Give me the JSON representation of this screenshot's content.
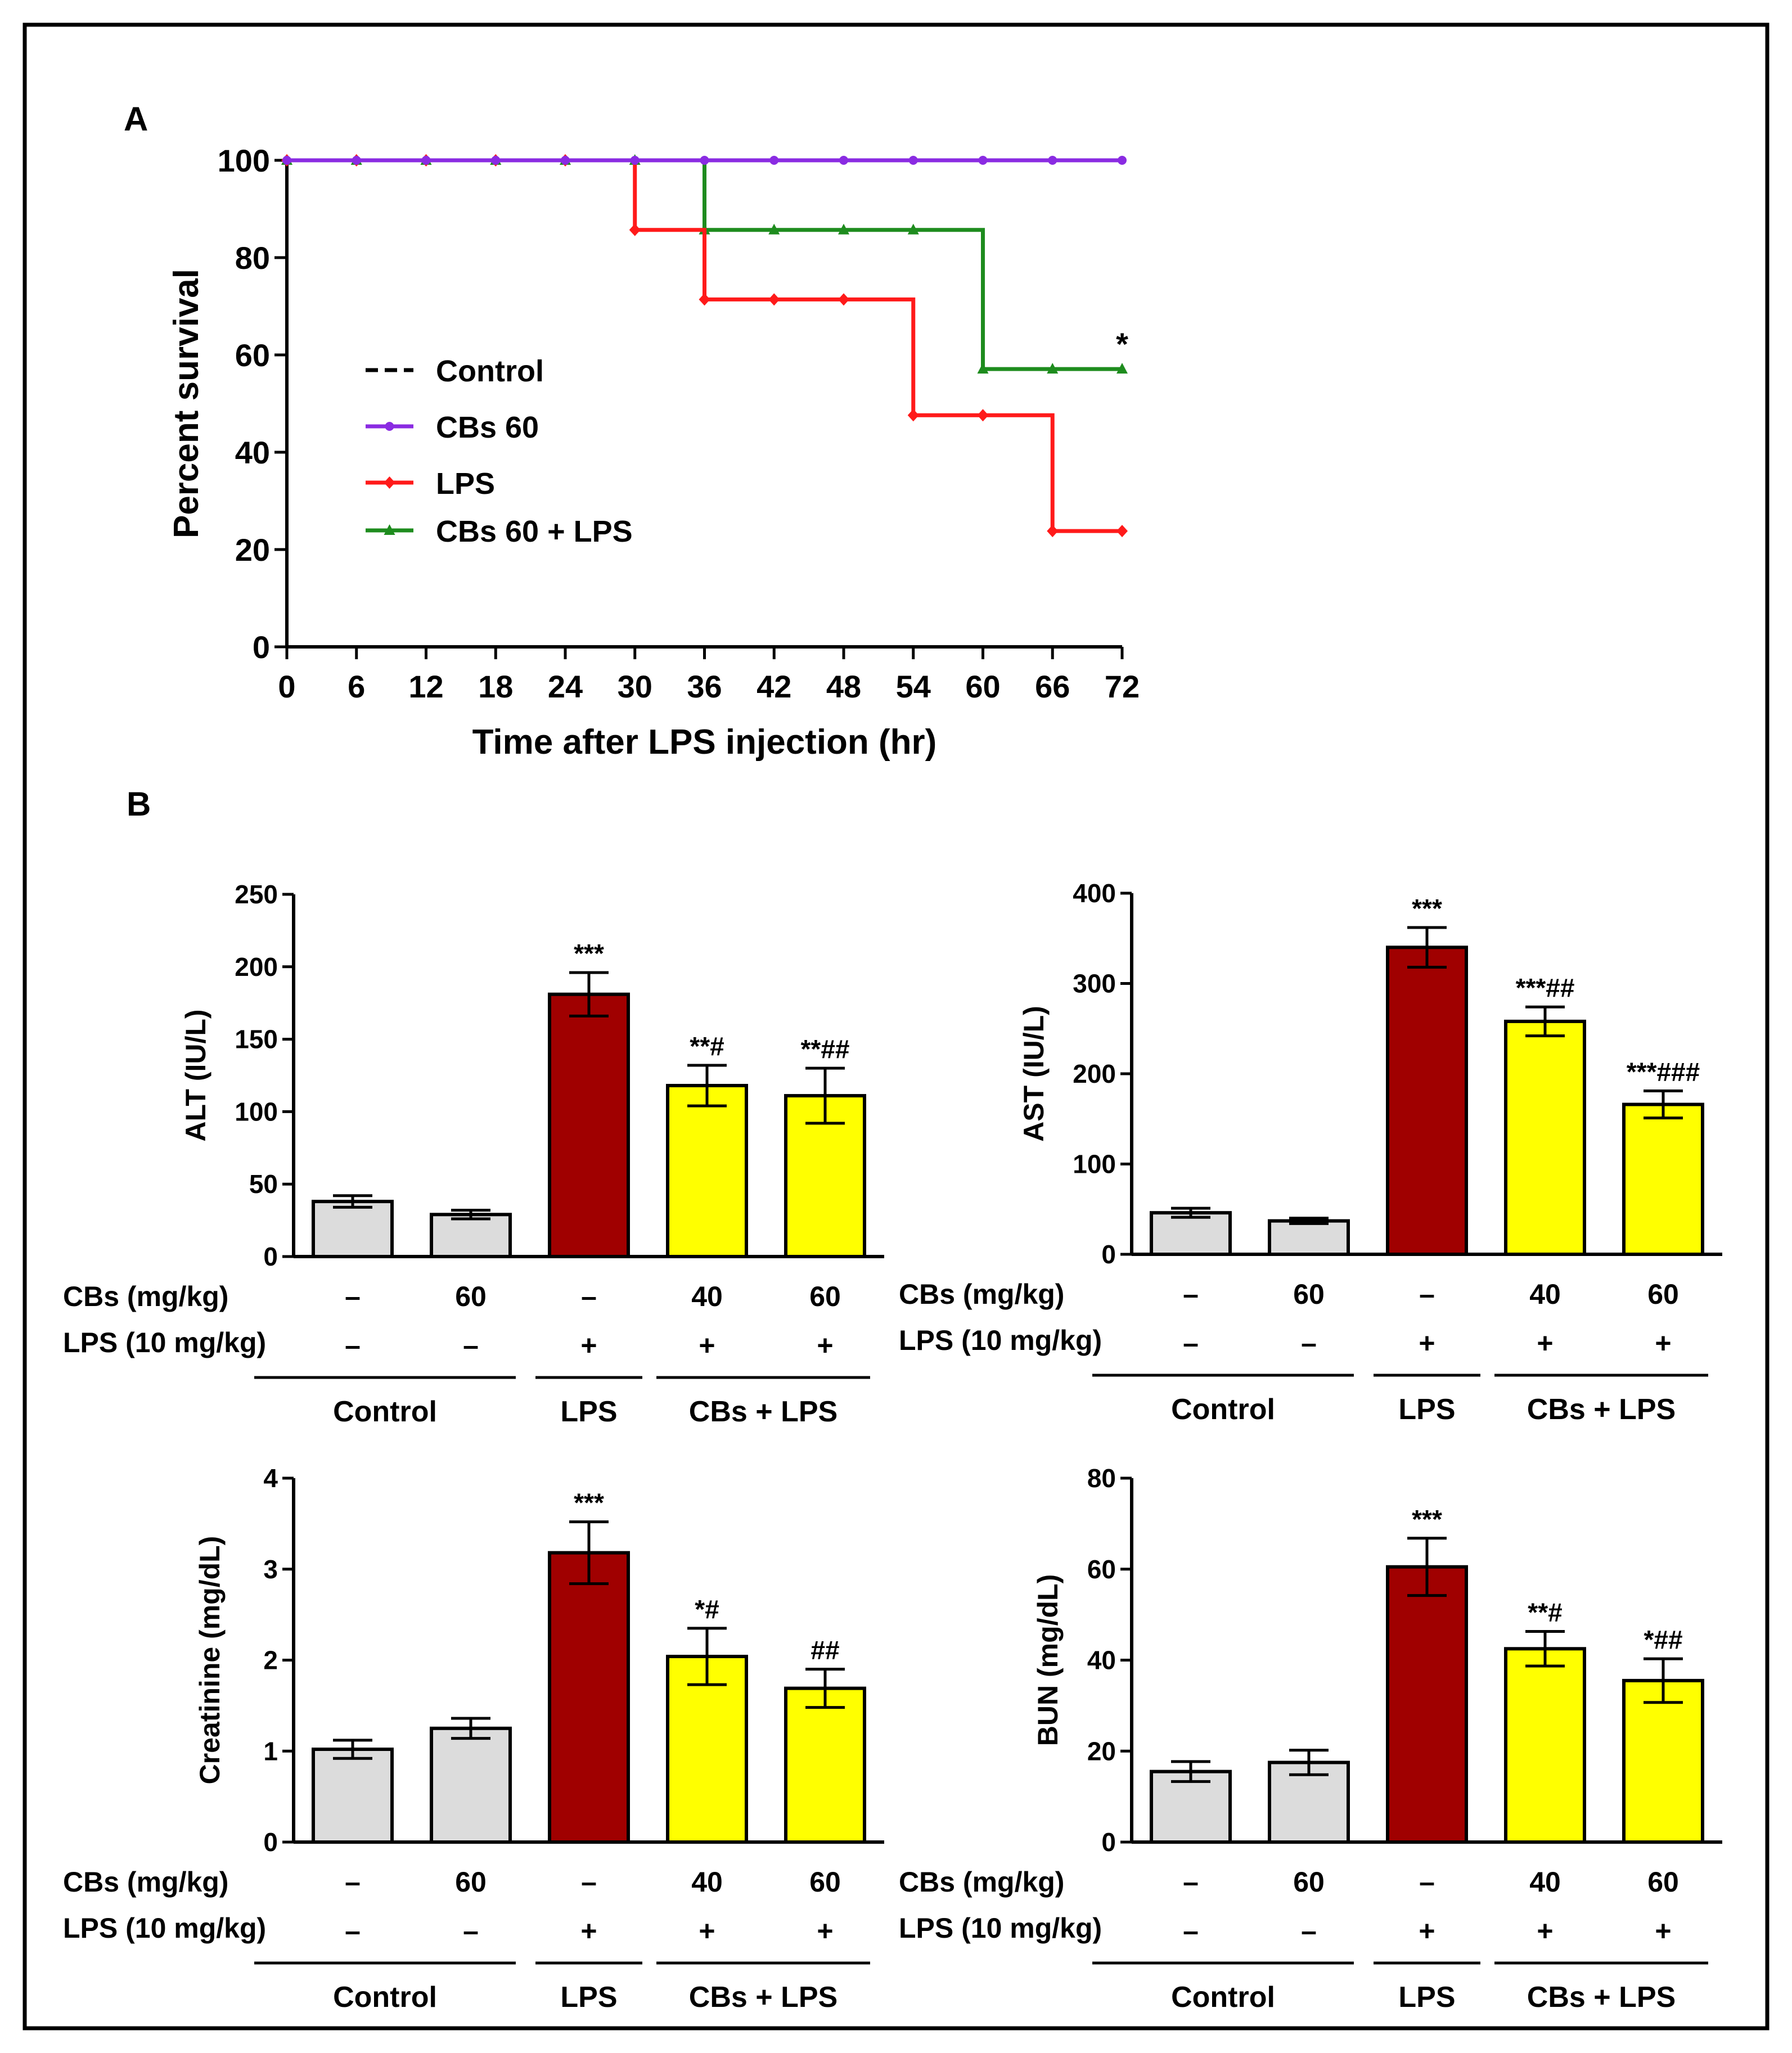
{
  "panel_labels": [
    "A",
    "B"
  ],
  "colors": {
    "control": "#000000",
    "cbs60": "#8a2be2",
    "lps": "#ff1a1a",
    "cbs60_lps": "#1e8c1e",
    "bar_control": "#dcdcdc",
    "bar_lps": "#a00000",
    "bar_cbs_lps": "#ffff00"
  },
  "group_labels": {
    "cbs_row": "CBs (mg/kg)",
    "lps_row": "LPS (10 mg/kg)",
    "cbs_values": [
      "–",
      "60",
      "–",
      "40",
      "60"
    ],
    "lps_values": [
      "–",
      "–",
      "+",
      "+",
      "+"
    ],
    "groups": [
      "Control",
      "LPS",
      "CBs + LPS"
    ]
  },
  "chart_data": [
    {
      "type": "line",
      "panel": "A",
      "title": "",
      "xlabel": "Time after LPS injection (hr)",
      "ylabel": "Percent survival",
      "xlim": [
        0,
        72
      ],
      "ylim": [
        0,
        100
      ],
      "xticks": [
        0,
        6,
        12,
        18,
        24,
        30,
        36,
        42,
        48,
        54,
        60,
        66,
        72
      ],
      "yticks": [
        0,
        20,
        40,
        60,
        80,
        100
      ],
      "step": true,
      "legend": {
        "placement": "middle-left",
        "entries": [
          "Control",
          "CBs 60",
          "LPS",
          "CBs 60 + LPS"
        ]
      },
      "series": [
        {
          "name": "Control",
          "color_key": "control",
          "dash": true,
          "x": [
            0,
            72
          ],
          "y": [
            100,
            100
          ]
        },
        {
          "name": "CBs 60",
          "color_key": "cbs60",
          "marker": "circle",
          "x": [
            0,
            6,
            12,
            18,
            24,
            30,
            36,
            42,
            48,
            54,
            60,
            66,
            72
          ],
          "y": [
            100,
            100,
            100,
            100,
            100,
            100,
            100,
            100,
            100,
            100,
            100,
            100,
            100
          ]
        },
        {
          "name": "LPS",
          "color_key": "lps",
          "marker": "diamond",
          "x": [
            0,
            6,
            12,
            18,
            24,
            30,
            36,
            42,
            48,
            54,
            60,
            66,
            72
          ],
          "y": [
            100,
            100,
            100,
            100,
            100,
            85.7,
            71.4,
            71.4,
            71.4,
            47.6,
            47.6,
            23.8,
            23.8
          ]
        },
        {
          "name": "CBs 60 + LPS",
          "color_key": "cbs60_lps",
          "marker": "triangle",
          "x": [
            0,
            6,
            12,
            18,
            24,
            30,
            36,
            42,
            48,
            54,
            60,
            66,
            72
          ],
          "y": [
            100,
            100,
            100,
            100,
            100,
            100,
            85.7,
            85.7,
            85.7,
            85.7,
            57.1,
            57.1,
            57.1
          ]
        }
      ],
      "annotations": [
        {
          "x": 72,
          "y": 57.1,
          "text": "*"
        }
      ]
    },
    {
      "type": "bar",
      "panel": "B",
      "ylabel": "ALT (IU/L)",
      "ylim": [
        0,
        250
      ],
      "yticks": [
        0,
        50,
        100,
        150,
        200,
        250
      ],
      "values": [
        38,
        29,
        181,
        118,
        111
      ],
      "errors": [
        4,
        3,
        15,
        14,
        19
      ],
      "annotations": [
        "",
        "",
        "***",
        "**#",
        "**##"
      ]
    },
    {
      "type": "bar",
      "panel": "B",
      "ylabel": "AST (IU/L)",
      "ylim": [
        0,
        400
      ],
      "yticks": [
        0,
        100,
        200,
        300,
        400
      ],
      "values": [
        46,
        37,
        340,
        258,
        166
      ],
      "errors": [
        5,
        3,
        22,
        16,
        15
      ],
      "annotations": [
        "",
        "",
        "***",
        "***##",
        "***###"
      ]
    },
    {
      "type": "bar",
      "panel": "B",
      "ylabel": "Creatinine (mg/dL)",
      "ylim": [
        0,
        4
      ],
      "yticks": [
        0,
        1,
        2,
        3,
        4
      ],
      "values": [
        1.02,
        1.25,
        3.18,
        2.04,
        1.69
      ],
      "errors": [
        0.1,
        0.11,
        0.34,
        0.31,
        0.21
      ],
      "annotations": [
        "",
        "",
        "***",
        "*#",
        "##"
      ]
    },
    {
      "type": "bar",
      "panel": "B",
      "ylabel": "BUN (mg/dL)",
      "ylim": [
        0,
        80
      ],
      "yticks": [
        0,
        20,
        40,
        60,
        80
      ],
      "values": [
        15.5,
        17.5,
        60.5,
        42.5,
        35.5
      ],
      "errors": [
        2.2,
        2.7,
        6.3,
        3.8,
        4.8
      ],
      "annotations": [
        "",
        "",
        "***",
        "**#",
        "*##"
      ]
    }
  ]
}
